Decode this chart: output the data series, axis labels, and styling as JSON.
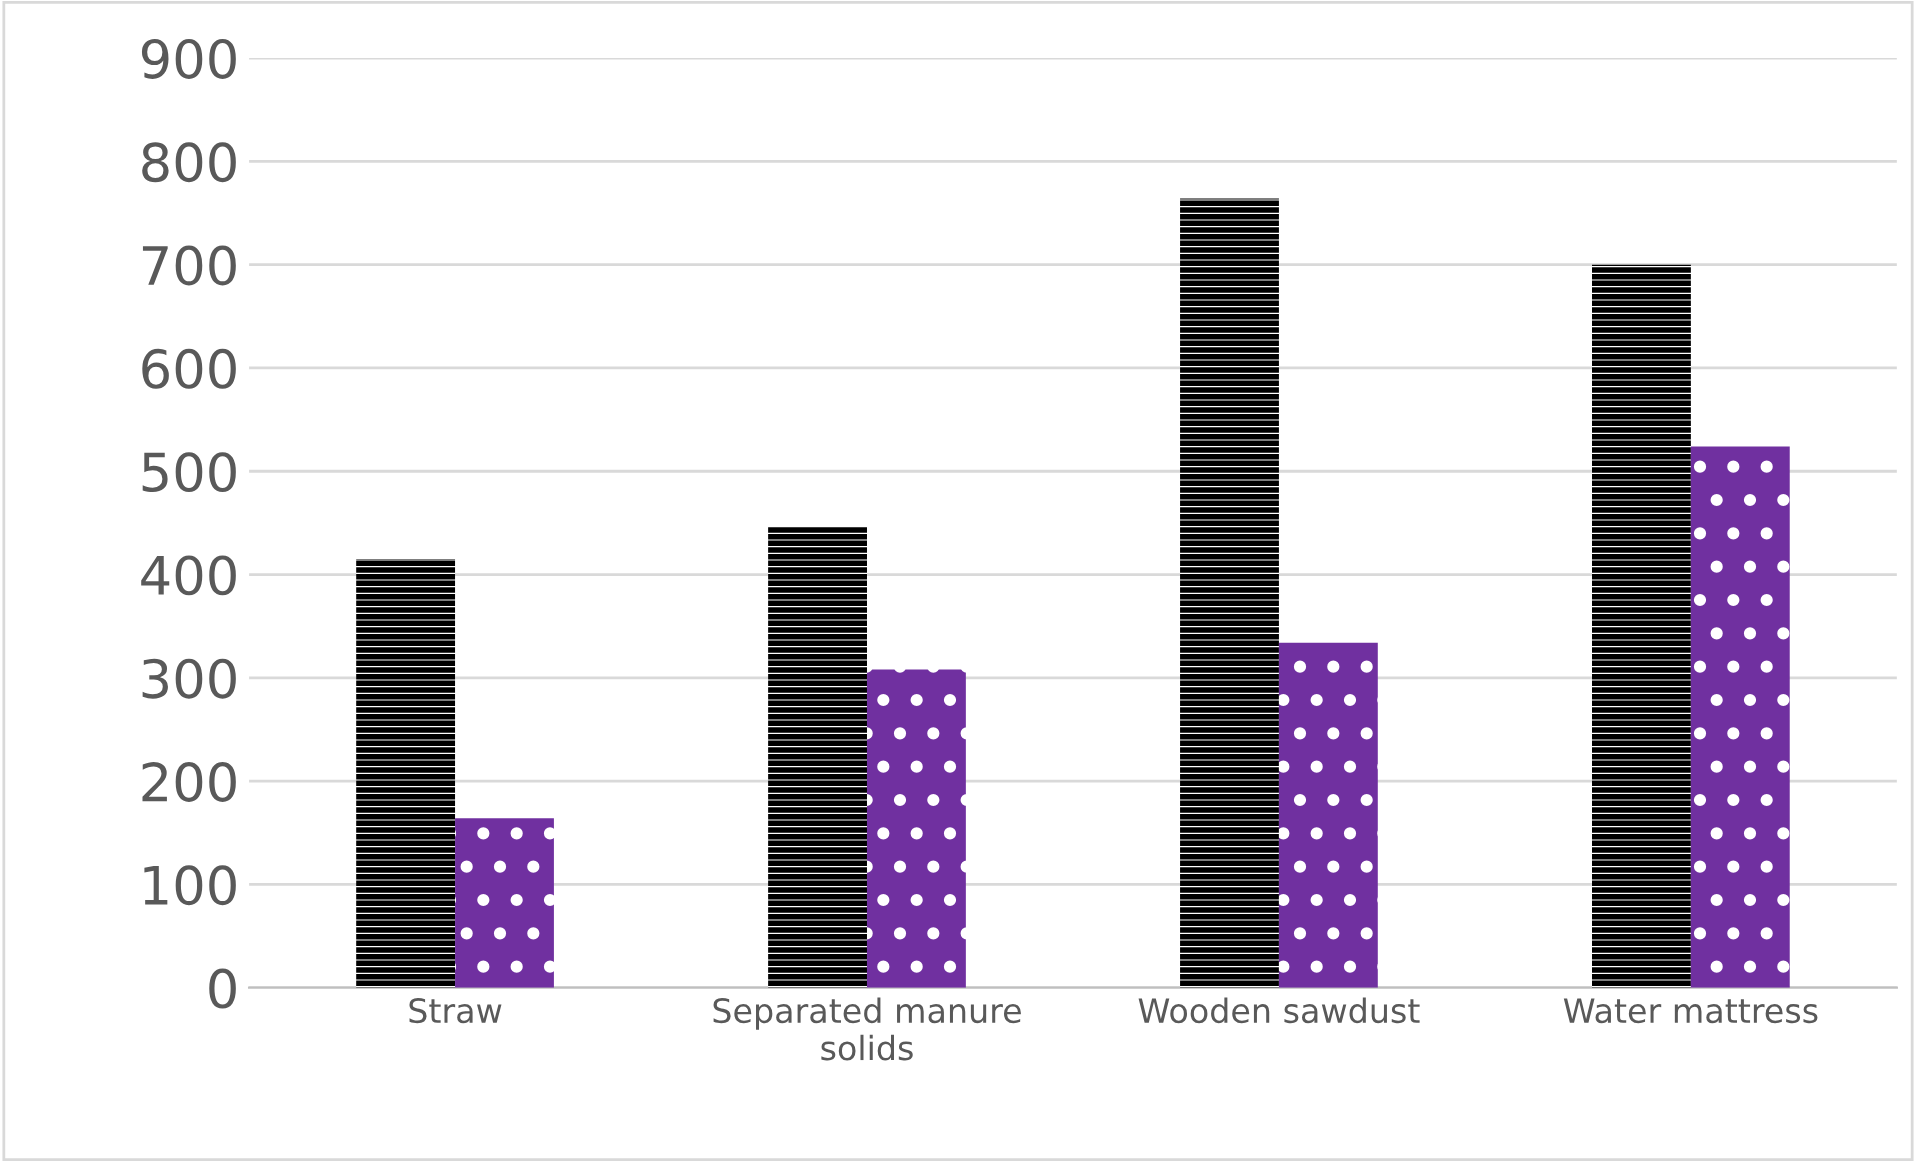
{
  "chart_data": {
    "type": "bar",
    "categories": [
      "Straw",
      "Separated manure\nsolids",
      "Wooden sawdust",
      "Water mattress"
    ],
    "series": [
      {
        "color": "#000000",
        "values": [
          415,
          446,
          764,
          700
        ]
      },
      {
        "color": "#7030a0",
        "values": [
          164,
          308,
          334,
          524
        ]
      }
    ],
    "ylim": [
      0,
      900
    ],
    "yticks": [
      0,
      100,
      200,
      300,
      400,
      500,
      600,
      700,
      800,
      900
    ],
    "grid": "y",
    "legend": false
  }
}
